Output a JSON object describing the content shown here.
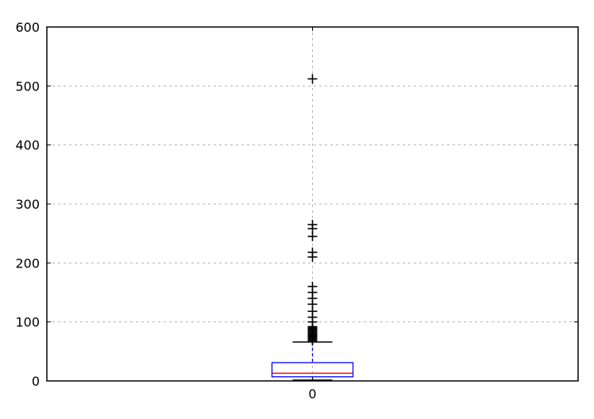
{
  "chart_data": {
    "type": "box",
    "categories": [
      "0"
    ],
    "ylim": [
      0,
      600
    ],
    "yticks": [
      "0",
      "100",
      "200",
      "300",
      "400",
      "500",
      "600"
    ],
    "grid": true,
    "box": {
      "whisker_low": 0,
      "q1": 7,
      "median": 13,
      "q3": 31,
      "whisker_high": 66
    },
    "outliers": [
      68,
      70,
      72,
      74,
      75,
      77,
      78,
      80,
      82,
      84,
      86,
      88,
      90,
      92,
      100,
      108,
      118,
      130,
      140,
      150,
      160,
      210,
      218,
      245,
      258,
      265,
      512
    ],
    "colors": {
      "box": "#0000ff",
      "median": "#ff0000",
      "caps": "#000000",
      "fliers": "#000000"
    }
  }
}
